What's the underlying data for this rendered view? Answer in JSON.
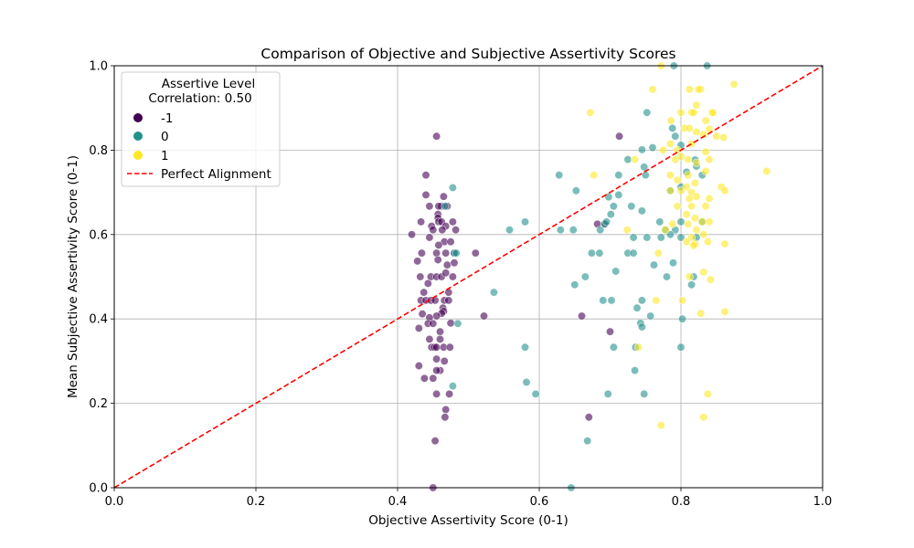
{
  "chart_data": {
    "type": "scatter",
    "title": "Comparison of Objective and Subjective Assertivity Scores",
    "xlabel": "Objective Assertivity Score (0-1)",
    "ylabel": "Mean Subjective Assertivity Score (0-1)",
    "xlim": [
      0.0,
      1.0
    ],
    "ylim": [
      0.0,
      1.0
    ],
    "xticks": [
      "0.0",
      "0.2",
      "0.4",
      "0.6",
      "0.8",
      "1.0"
    ],
    "yticks": [
      "0.0",
      "0.2",
      "0.4",
      "0.6",
      "0.8",
      "1.0"
    ],
    "grid": true,
    "legend": {
      "placement": "top-left",
      "title_line1": "Assertive Level",
      "title_line2": "Correlation: 0.50",
      "entries": [
        "-1",
        "0",
        "1"
      ],
      "line_label": "Perfect Alignment"
    },
    "reference_line": {
      "name": "Perfect Alignment",
      "x": [
        0.0,
        1.0
      ],
      "y": [
        0.0,
        1.0
      ],
      "color": "#ff0000",
      "style": "dashed"
    },
    "series": [
      {
        "name": "-1",
        "color": "#440154",
        "points": [
          [
            0.455,
            0.833
          ],
          [
            0.44,
            0.741
          ],
          [
            0.44,
            0.694
          ],
          [
            0.465,
            0.69
          ],
          [
            0.462,
            0.667
          ],
          [
            0.458,
            0.667
          ],
          [
            0.445,
            0.667
          ],
          [
            0.47,
            0.667
          ],
          [
            0.457,
            0.648
          ],
          [
            0.457,
            0.639
          ],
          [
            0.458,
            0.63
          ],
          [
            0.478,
            0.63
          ],
          [
            0.462,
            0.63
          ],
          [
            0.433,
            0.63
          ],
          [
            0.448,
            0.62
          ],
          [
            0.468,
            0.62
          ],
          [
            0.463,
            0.611
          ],
          [
            0.45,
            0.611
          ],
          [
            0.482,
            0.611
          ],
          [
            0.42,
            0.6
          ],
          [
            0.445,
            0.593
          ],
          [
            0.466,
            0.583
          ],
          [
            0.475,
            0.583
          ],
          [
            0.458,
            0.575
          ],
          [
            0.434,
            0.556
          ],
          [
            0.455,
            0.556
          ],
          [
            0.468,
            0.556
          ],
          [
            0.51,
            0.556
          ],
          [
            0.48,
            0.556
          ],
          [
            0.457,
            0.54
          ],
          [
            0.428,
            0.537
          ],
          [
            0.47,
            0.528
          ],
          [
            0.48,
            0.533
          ],
          [
            0.447,
            0.5
          ],
          [
            0.432,
            0.5
          ],
          [
            0.455,
            0.5
          ],
          [
            0.462,
            0.5
          ],
          [
            0.468,
            0.509
          ],
          [
            0.478,
            0.5
          ],
          [
            0.443,
            0.484
          ],
          [
            0.437,
            0.463
          ],
          [
            0.472,
            0.463
          ],
          [
            0.433,
            0.444
          ],
          [
            0.44,
            0.444
          ],
          [
            0.447,
            0.444
          ],
          [
            0.466,
            0.444
          ],
          [
            0.472,
            0.444
          ],
          [
            0.453,
            0.444
          ],
          [
            0.464,
            0.426
          ],
          [
            0.465,
            0.418
          ],
          [
            0.462,
            0.413
          ],
          [
            0.455,
            0.407
          ],
          [
            0.435,
            0.412
          ],
          [
            0.445,
            0.403
          ],
          [
            0.522,
            0.407
          ],
          [
            0.475,
            0.39
          ],
          [
            0.443,
            0.389
          ],
          [
            0.45,
            0.389
          ],
          [
            0.43,
            0.378
          ],
          [
            0.46,
            0.37
          ],
          [
            0.46,
            0.352
          ],
          [
            0.445,
            0.352
          ],
          [
            0.448,
            0.333
          ],
          [
            0.452,
            0.333
          ],
          [
            0.455,
            0.333
          ],
          [
            0.465,
            0.333
          ],
          [
            0.474,
            0.333
          ],
          [
            0.455,
            0.305
          ],
          [
            0.466,
            0.3
          ],
          [
            0.43,
            0.289
          ],
          [
            0.46,
            0.278
          ],
          [
            0.455,
            0.278
          ],
          [
            0.438,
            0.259
          ],
          [
            0.45,
            0.259
          ],
          [
            0.455,
            0.222
          ],
          [
            0.473,
            0.222
          ],
          [
            0.468,
            0.185
          ],
          [
            0.467,
            0.167
          ],
          [
            0.453,
            0.111
          ],
          [
            0.45,
            0.0
          ],
          [
            0.713,
            0.833
          ],
          [
            0.682,
            0.625
          ],
          [
            0.693,
            0.625
          ],
          [
            0.66,
            0.407
          ],
          [
            0.7,
            0.37
          ],
          [
            0.67,
            0.167
          ]
        ]
      },
      {
        "name": "0",
        "color": "#21918c",
        "points": [
          [
            0.79,
            1.0
          ],
          [
            0.837,
            1.0
          ],
          [
            0.752,
            0.889
          ],
          [
            0.788,
            0.852
          ],
          [
            0.792,
            0.833
          ],
          [
            0.76,
            0.806
          ],
          [
            0.745,
            0.801
          ],
          [
            0.8,
            0.812
          ],
          [
            0.748,
            0.76
          ],
          [
            0.75,
            0.741
          ],
          [
            0.712,
            0.741
          ],
          [
            0.725,
            0.778
          ],
          [
            0.808,
            0.748
          ],
          [
            0.82,
            0.777
          ],
          [
            0.822,
            0.762
          ],
          [
            0.83,
            0.741
          ],
          [
            0.628,
            0.741
          ],
          [
            0.785,
            0.704
          ],
          [
            0.8,
            0.713
          ],
          [
            0.712,
            0.694
          ],
          [
            0.698,
            0.689
          ],
          [
            0.652,
            0.704
          ],
          [
            0.478,
            0.711
          ],
          [
            0.73,
            0.667
          ],
          [
            0.745,
            0.656
          ],
          [
            0.705,
            0.667
          ],
          [
            0.701,
            0.648
          ],
          [
            0.467,
            0.667
          ],
          [
            0.77,
            0.63
          ],
          [
            0.8,
            0.63
          ],
          [
            0.83,
            0.63
          ],
          [
            0.58,
            0.63
          ],
          [
            0.63,
            0.611
          ],
          [
            0.648,
            0.611
          ],
          [
            0.686,
            0.611
          ],
          [
            0.692,
            0.625
          ],
          [
            0.695,
            0.63
          ],
          [
            0.778,
            0.611
          ],
          [
            0.792,
            0.611
          ],
          [
            0.785,
            0.6
          ],
          [
            0.558,
            0.611
          ],
          [
            0.733,
            0.593
          ],
          [
            0.752,
            0.593
          ],
          [
            0.772,
            0.593
          ],
          [
            0.8,
            0.593
          ],
          [
            0.822,
            0.593
          ],
          [
            0.674,
            0.556
          ],
          [
            0.685,
            0.556
          ],
          [
            0.725,
            0.556
          ],
          [
            0.733,
            0.556
          ],
          [
            0.48,
            0.556
          ],
          [
            0.483,
            0.556
          ],
          [
            0.762,
            0.528
          ],
          [
            0.789,
            0.533
          ],
          [
            0.78,
            0.5
          ],
          [
            0.708,
            0.513
          ],
          [
            0.665,
            0.5
          ],
          [
            0.818,
            0.5
          ],
          [
            0.65,
            0.481
          ],
          [
            0.815,
            0.481
          ],
          [
            0.536,
            0.463
          ],
          [
            0.69,
            0.444
          ],
          [
            0.702,
            0.444
          ],
          [
            0.745,
            0.444
          ],
          [
            0.738,
            0.426
          ],
          [
            0.757,
            0.407
          ],
          [
            0.802,
            0.4
          ],
          [
            0.743,
            0.39
          ],
          [
            0.745,
            0.381
          ],
          [
            0.485,
            0.389
          ],
          [
            0.58,
            0.333
          ],
          [
            0.705,
            0.333
          ],
          [
            0.736,
            0.333
          ],
          [
            0.8,
            0.333
          ],
          [
            0.582,
            0.25
          ],
          [
            0.735,
            0.278
          ],
          [
            0.478,
            0.241
          ],
          [
            0.595,
            0.222
          ],
          [
            0.697,
            0.222
          ],
          [
            0.748,
            0.222
          ],
          [
            0.668,
            0.111
          ],
          [
            0.645,
            0.0
          ]
        ]
      },
      {
        "name": "1",
        "color": "#fde725",
        "points": [
          [
            0.772,
            1.0
          ],
          [
            0.875,
            0.956
          ],
          [
            0.76,
            0.944
          ],
          [
            0.812,
            0.944
          ],
          [
            0.828,
            0.944
          ],
          [
            0.825,
            0.944
          ],
          [
            0.822,
            0.907
          ],
          [
            0.8,
            0.889
          ],
          [
            0.815,
            0.889
          ],
          [
            0.818,
            0.889
          ],
          [
            0.844,
            0.889
          ],
          [
            0.845,
            0.889
          ],
          [
            0.672,
            0.889
          ],
          [
            0.835,
            0.87
          ],
          [
            0.786,
            0.87
          ],
          [
            0.805,
            0.852
          ],
          [
            0.812,
            0.852
          ],
          [
            0.822,
            0.843
          ],
          [
            0.832,
            0.837
          ],
          [
            0.85,
            0.833
          ],
          [
            0.86,
            0.83
          ],
          [
            0.84,
            0.85
          ],
          [
            0.815,
            0.815
          ],
          [
            0.785,
            0.815
          ],
          [
            0.795,
            0.8
          ],
          [
            0.775,
            0.8
          ],
          [
            0.835,
            0.796
          ],
          [
            0.84,
            0.778
          ],
          [
            0.792,
            0.778
          ],
          [
            0.8,
            0.785
          ],
          [
            0.81,
            0.778
          ],
          [
            0.822,
            0.77
          ],
          [
            0.835,
            0.75
          ],
          [
            0.921,
            0.75
          ],
          [
            0.735,
            0.778
          ],
          [
            0.677,
            0.741
          ],
          [
            0.785,
            0.741
          ],
          [
            0.81,
            0.741
          ],
          [
            0.795,
            0.729
          ],
          [
            0.82,
            0.722
          ],
          [
            0.857,
            0.713
          ],
          [
            0.862,
            0.704
          ],
          [
            0.8,
            0.704
          ],
          [
            0.808,
            0.713
          ],
          [
            0.785,
            0.704
          ],
          [
            0.815,
            0.7
          ],
          [
            0.822,
            0.69
          ],
          [
            0.84,
            0.685
          ],
          [
            0.812,
            0.685
          ],
          [
            0.795,
            0.667
          ],
          [
            0.815,
            0.667
          ],
          [
            0.835,
            0.667
          ],
          [
            0.808,
            0.648
          ],
          [
            0.82,
            0.639
          ],
          [
            0.83,
            0.63
          ],
          [
            0.84,
            0.63
          ],
          [
            0.788,
            0.625
          ],
          [
            0.81,
            0.625
          ],
          [
            0.822,
            0.611
          ],
          [
            0.778,
            0.611
          ],
          [
            0.724,
            0.611
          ],
          [
            0.832,
            0.6
          ],
          [
            0.815,
            0.593
          ],
          [
            0.808,
            0.583
          ],
          [
            0.82,
            0.578
          ],
          [
            0.838,
            0.583
          ],
          [
            0.862,
            0.578
          ],
          [
            0.818,
            0.574
          ],
          [
            0.768,
            0.556
          ],
          [
            0.832,
            0.511
          ],
          [
            0.812,
            0.5
          ],
          [
            0.842,
            0.493
          ],
          [
            0.765,
            0.444
          ],
          [
            0.802,
            0.444
          ],
          [
            0.862,
            0.417
          ],
          [
            0.828,
            0.413
          ],
          [
            0.74,
            0.333
          ],
          [
            0.838,
            0.222
          ],
          [
            0.832,
            0.167
          ],
          [
            0.772,
            0.148
          ]
        ]
      }
    ]
  }
}
